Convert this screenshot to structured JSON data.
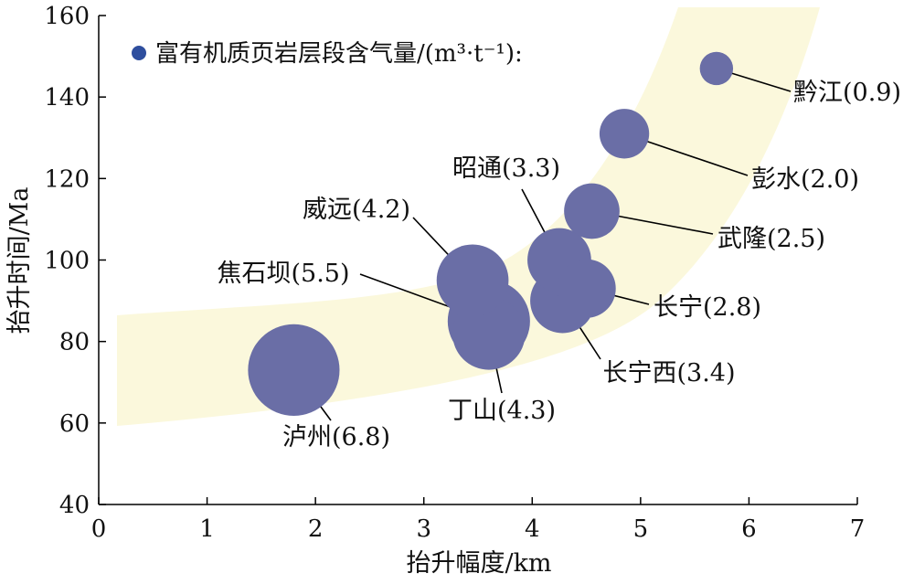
{
  "chart_data": {
    "type": "scatter",
    "xlabel": "抬升幅度/km",
    "ylabel": "抬升时间/Ma",
    "xlim": [
      0,
      7
    ],
    "ylim": [
      40,
      160
    ],
    "xticks": [
      0,
      1,
      2,
      3,
      4,
      5,
      6,
      7
    ],
    "yticks": [
      40,
      60,
      80,
      100,
      120,
      140,
      160
    ],
    "legend": {
      "label": "富有机质页岩层段含气量/(m³·t⁻¹):",
      "position": "top-left"
    },
    "colors": {
      "bubble": "#6a6ea6",
      "legend_marker": "#2e4e9e",
      "band": "#fbf8dc"
    },
    "points": [
      {
        "name": "黔江",
        "label": "黔江(0.9)",
        "x": 5.7,
        "y": 147,
        "gas": 0.9
      },
      {
        "name": "彭水",
        "label": "彭水(2.0)",
        "x": 4.85,
        "y": 131,
        "gas": 2.0
      },
      {
        "name": "武隆",
        "label": "武隆(2.5)",
        "x": 4.55,
        "y": 112,
        "gas": 2.5
      },
      {
        "name": "长宁",
        "label": "长宁(2.8)",
        "x": 4.5,
        "y": 93,
        "gas": 2.8
      },
      {
        "name": "昭通",
        "label": "昭通(3.3)",
        "x": 4.25,
        "y": 100,
        "gas": 3.3
      },
      {
        "name": "长宁西",
        "label": "长宁西(3.4)",
        "x": 4.28,
        "y": 90,
        "gas": 3.4
      },
      {
        "name": "威远",
        "label": "威远(4.2)",
        "x": 3.45,
        "y": 95,
        "gas": 4.2
      },
      {
        "name": "丁山",
        "label": "丁山(4.3)",
        "x": 3.6,
        "y": 82,
        "gas": 4.3
      },
      {
        "name": "焦石坝",
        "label": "焦石坝(5.5)",
        "x": 3.6,
        "y": 85,
        "gas": 5.5
      },
      {
        "name": "泸州",
        "label": "泸州(6.8)",
        "x": 1.8,
        "y": 73,
        "gas": 6.8
      }
    ]
  }
}
